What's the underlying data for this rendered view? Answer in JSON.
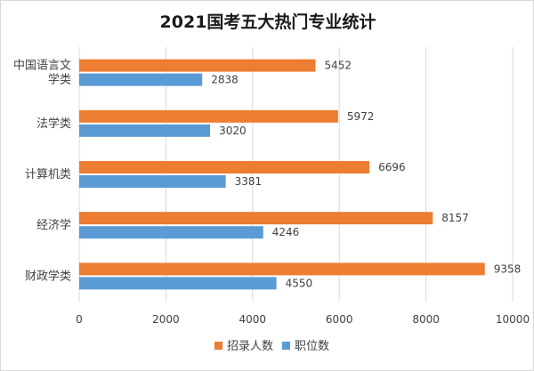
{
  "chart_data": {
    "type": "bar",
    "orientation": "horizontal",
    "title": "2021国考五大热门专业统计",
    "categories": [
      "中国语言文学类",
      "法学类",
      "计算机类",
      "经济学",
      "财政学类"
    ],
    "category_lines": [
      [
        "中国语言文",
        "学类"
      ],
      [
        "法学类"
      ],
      [
        "计算机类"
      ],
      [
        "经济学"
      ],
      [
        "财政学类"
      ]
    ],
    "series": [
      {
        "name": "招录人数",
        "color": "#ED7D31",
        "values": [
          5452,
          5972,
          6696,
          8157,
          9358
        ]
      },
      {
        "name": "职位数",
        "color": "#5B9BD5",
        "values": [
          2838,
          3020,
          3381,
          4246,
          4550
        ]
      }
    ],
    "xlim": [
      0,
      10000
    ],
    "xticks": [
      0,
      2000,
      4000,
      6000,
      8000,
      10000
    ],
    "grid": true,
    "legend_position": "bottom"
  }
}
